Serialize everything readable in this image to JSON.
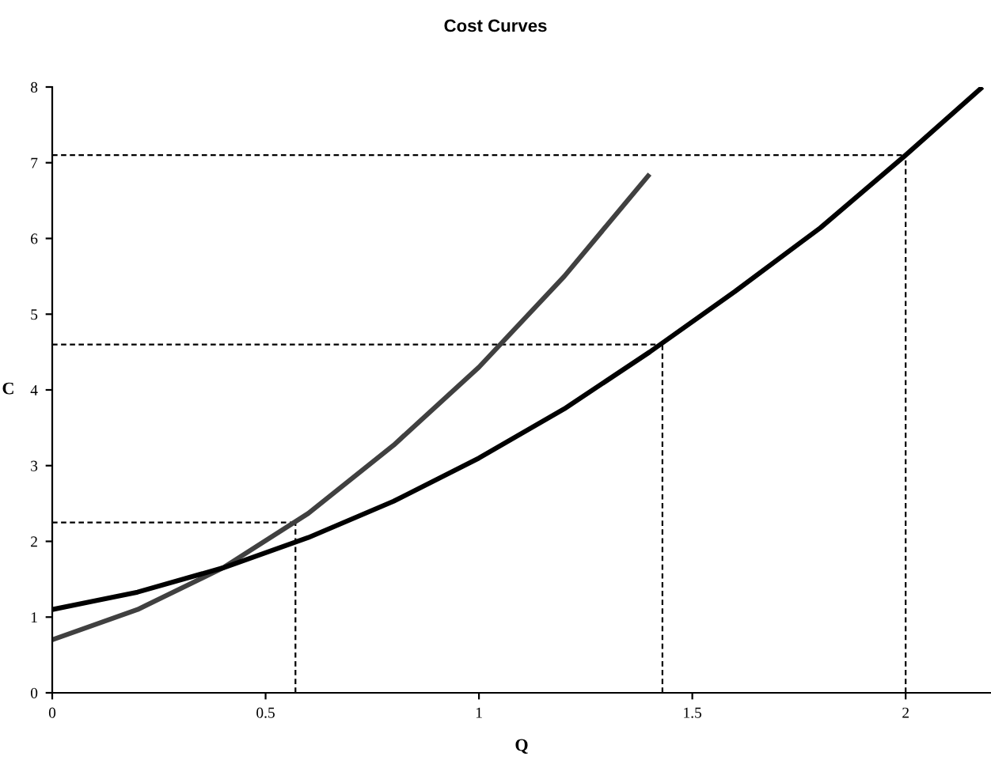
{
  "chart_data": {
    "type": "line",
    "title": "Cost Curves",
    "xlabel": "Q",
    "ylabel": "C",
    "xlim": [
      0,
      2.2
    ],
    "ylim": [
      0,
      8
    ],
    "xticks": [
      0,
      0.5,
      1,
      1.5,
      2
    ],
    "yticks": [
      0,
      1,
      2,
      3,
      4,
      5,
      6,
      7,
      8
    ],
    "grid": false,
    "marker": "none",
    "line_style": "solid",
    "series": [
      {
        "color": "#404040",
        "x": [
          0,
          0.2,
          0.4,
          0.6,
          0.8,
          1.0,
          1.2,
          1.4
        ],
        "values": [
          0.7,
          1.1,
          1.65,
          2.37,
          3.27,
          4.3,
          5.5,
          6.85
        ]
      },
      {
        "color": "#000000",
        "x": [
          0,
          0.2,
          0.4,
          0.6,
          0.8,
          1.0,
          1.2,
          1.4,
          1.6,
          1.8,
          2.0,
          2.18
        ],
        "values": [
          1.1,
          1.33,
          1.65,
          2.05,
          2.53,
          3.1,
          3.75,
          4.5,
          5.3,
          6.14,
          7.1,
          8.0
        ]
      }
    ],
    "ref_lines": [
      {
        "axis": "y",
        "value": 2.25,
        "color": "#000000",
        "line_style": "dashed"
      },
      {
        "axis": "y",
        "value": 4.6,
        "color": "#000000",
        "line_style": "dashed"
      },
      {
        "axis": "y",
        "value": 7.1,
        "color": "#000000",
        "line_style": "dashed"
      },
      {
        "axis": "x",
        "value": 0.57,
        "color": "#000000",
        "line_style": "dashed"
      },
      {
        "axis": "x",
        "value": 1.43,
        "color": "#000000",
        "line_style": "dashed"
      },
      {
        "axis": "x",
        "value": 2.0,
        "color": "#000000",
        "line_style": "dashed"
      }
    ]
  }
}
